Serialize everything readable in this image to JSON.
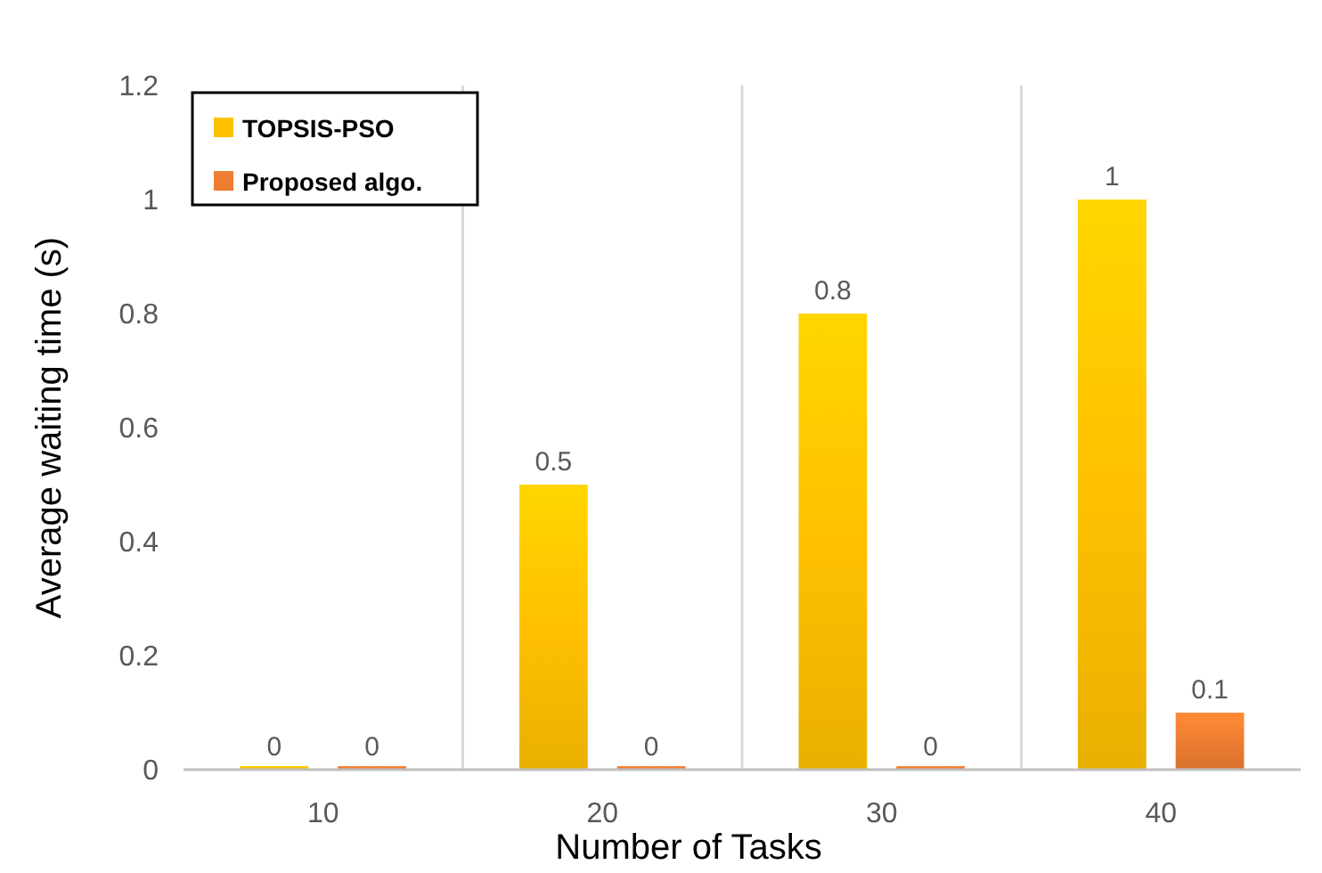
{
  "chart_data": {
    "type": "bar",
    "xlabel": "Number of Tasks",
    "ylabel": "Average waiting time (s)",
    "categories": [
      "10",
      "20",
      "30",
      "40"
    ],
    "series": [
      {
        "name": "TOPSIS-PSO",
        "color": "#ffc000",
        "values": [
          0,
          0.5,
          0.8,
          1
        ]
      },
      {
        "name": "Proposed algo.",
        "color": "#ed7d31",
        "values": [
          0,
          0,
          0,
          0.1
        ]
      }
    ],
    "ylim": [
      0,
      1.2
    ],
    "yticks": [
      0,
      0.2,
      0.4,
      0.6,
      0.8,
      1,
      1.2
    ],
    "grid": "x",
    "legend": "top left",
    "data_labels": true
  }
}
